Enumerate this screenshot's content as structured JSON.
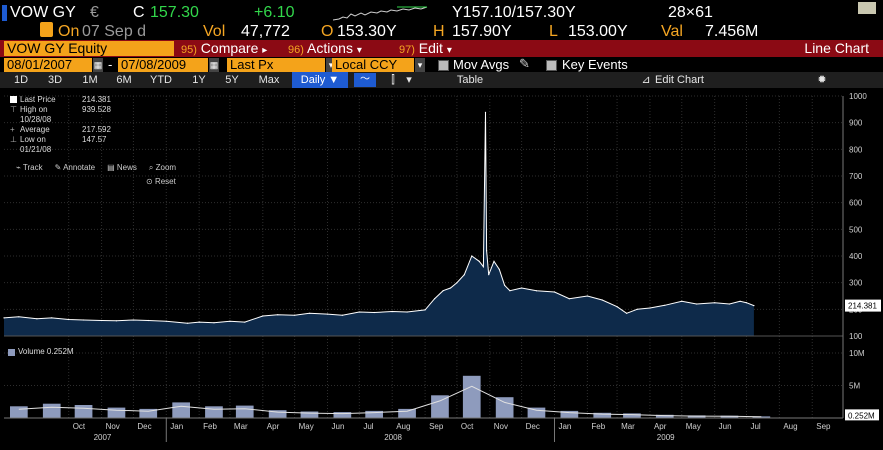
{
  "quote": {
    "ticker": "VOW GY",
    "currency_symbol": "€",
    "last_flag": "C",
    "last": "157.30",
    "change": "+6.10",
    "bid_ask": "Y157.10/157.30Y",
    "size": "28×61",
    "on_label": "On",
    "on_date": "07 Sep d",
    "vol_label": "Vol",
    "vol": "47,772",
    "open_label": "O",
    "open": "153.30Y",
    "high_label": "H",
    "high": "157.90Y",
    "low_label": "L",
    "low": "153.00Y",
    "val_label": "Val",
    "val": "7.456M"
  },
  "menubar": {
    "security": "VOW GY Equity",
    "items": [
      {
        "num": "95)",
        "label": "Compare",
        "caret": "▸"
      },
      {
        "num": "96)",
        "label": "Actions",
        "caret": "▾"
      },
      {
        "num": "97)",
        "label": "Edit",
        "caret": "▾"
      }
    ],
    "chart_type": "Line Chart"
  },
  "controls": {
    "start_date": "08/01/2007",
    "dash": "-",
    "end_date": "07/08/2009",
    "price_field": "Last Px",
    "currency": "Local CCY",
    "mov_avgs": "Mov Avgs",
    "key_events": "Key Events"
  },
  "tabs": {
    "periods": [
      "1D",
      "3D",
      "1M",
      "6M",
      "YTD",
      "1Y",
      "5Y",
      "Max"
    ],
    "frequency": "Daily ▼",
    "table": "Table",
    "edit_chart": "Edit Chart"
  },
  "tools": {
    "track": "Track",
    "annotate": "Annotate",
    "news": "News",
    "zoom": "Zoom",
    "reset": "Reset"
  },
  "legend": {
    "rows": [
      {
        "label": "Last Price",
        "value": "214.381"
      },
      {
        "label": "High on 10/28/08",
        "value": "939.528"
      },
      {
        "label": "Average",
        "value": "217.592"
      },
      {
        "label": "Low on 01/21/08",
        "value": "147.57"
      }
    ],
    "volume": "Volume  0.252M"
  },
  "colors": {
    "price_fill": "#0e2a4a",
    "price_line": "#ffffff",
    "volume_bar": "#8e9bbd",
    "accent_amber": "#f4a31a",
    "menu_red": "#8b0a14"
  },
  "chart_data": [
    {
      "type": "area",
      "series": [
        {
          "name": "Last Price",
          "x": [
            "2007-08-01",
            "2007-08-15",
            "2007-09-01",
            "2007-09-15",
            "2007-10-01",
            "2007-10-15",
            "2007-11-01",
            "2007-11-15",
            "2007-12-01",
            "2007-12-15",
            "2008-01-01",
            "2008-01-21",
            "2008-02-01",
            "2008-02-15",
            "2008-03-01",
            "2008-03-15",
            "2008-04-01",
            "2008-04-15",
            "2008-05-01",
            "2008-05-15",
            "2008-06-01",
            "2008-06-15",
            "2008-07-01",
            "2008-07-15",
            "2008-08-01",
            "2008-08-15",
            "2008-09-01",
            "2008-09-10",
            "2008-09-18",
            "2008-09-25",
            "2008-10-01",
            "2008-10-08",
            "2008-10-15",
            "2008-10-22",
            "2008-10-26",
            "2008-10-28",
            "2008-10-29",
            "2008-10-31",
            "2008-11-05",
            "2008-11-10",
            "2008-11-15",
            "2008-11-20",
            "2008-12-01",
            "2008-12-15",
            "2009-01-01",
            "2009-01-15",
            "2009-02-01",
            "2009-02-15",
            "2009-03-01",
            "2009-03-10",
            "2009-03-20",
            "2009-04-01",
            "2009-04-15",
            "2009-05-01",
            "2009-05-15",
            "2009-06-01",
            "2009-06-15",
            "2009-06-25",
            "2009-07-01",
            "2009-07-08"
          ],
          "values": [
            168,
            172,
            165,
            168,
            162,
            160,
            158,
            157,
            160,
            158,
            155,
            148,
            152,
            150,
            155,
            152,
            175,
            180,
            178,
            185,
            182,
            178,
            190,
            188,
            192,
            190,
            198,
            240,
            270,
            280,
            300,
            330,
            400,
            380,
            360,
            939,
            420,
            330,
            380,
            350,
            290,
            270,
            280,
            270,
            265,
            240,
            250,
            235,
            210,
            185,
            200,
            205,
            215,
            230,
            220,
            225,
            220,
            230,
            225,
            214
          ]
        }
      ],
      "ylim": [
        100,
        1000
      ],
      "yticks": [
        100,
        200,
        300,
        400,
        500,
        600,
        700,
        800,
        900,
        1000
      ],
      "last_label": "214.381",
      "x_month_labels": [
        "Oct",
        "Nov",
        "Dec",
        "Jan",
        "Feb",
        "Mar",
        "Apr",
        "May",
        "Jun",
        "Jul",
        "Aug",
        "Sep",
        "Oct",
        "Nov",
        "Dec",
        "Jan",
        "Feb",
        "Mar",
        "Apr",
        "May",
        "Jun",
        "Jul",
        "Aug",
        "Sep"
      ],
      "x_year_labels": [
        "2007",
        "2008",
        "2009"
      ]
    },
    {
      "type": "bar",
      "series": [
        {
          "name": "Volume",
          "unit": "M",
          "x": [
            "2007-08",
            "2007-09",
            "2007-10",
            "2007-11",
            "2007-12",
            "2008-01",
            "2008-02",
            "2008-03",
            "2008-04",
            "2008-05",
            "2008-06",
            "2008-07",
            "2008-08",
            "2008-09",
            "2008-10",
            "2008-11",
            "2008-12",
            "2009-01",
            "2009-02",
            "2009-03",
            "2009-04",
            "2009-05",
            "2009-06",
            "2009-07"
          ],
          "values": [
            1.8,
            2.2,
            2.0,
            1.6,
            1.4,
            2.4,
            1.8,
            1.9,
            1.2,
            1.0,
            0.9,
            1.1,
            1.4,
            3.5,
            6.5,
            3.2,
            1.6,
            1.1,
            0.8,
            0.7,
            0.5,
            0.4,
            0.35,
            0.25
          ]
        }
      ],
      "ylim": [
        0,
        12
      ],
      "yticks": [
        5,
        10
      ],
      "ytick_labels": [
        "5M",
        "10M"
      ],
      "last_label": "0.252M"
    }
  ]
}
